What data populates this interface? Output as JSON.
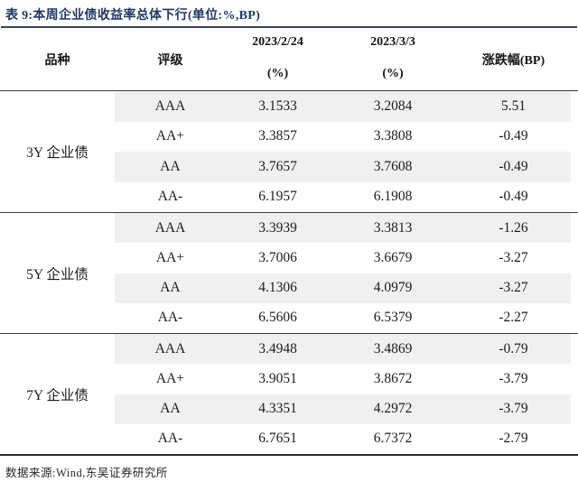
{
  "title": "表 9:本周企业债收益率总体下行(单位:%,BP)",
  "header": {
    "variety": "品种",
    "rating": "评级",
    "date1": "2023/2/24",
    "date1_unit": "(%)",
    "date2": "2023/3/3",
    "date2_unit": "(%)",
    "change": "涨跌幅(BP)"
  },
  "groups": [
    {
      "variety": "3Y 企业债",
      "rows": [
        {
          "rating": "AAA",
          "prev": "3.1533",
          "curr": "3.2084",
          "change": "5.51"
        },
        {
          "rating": "AA+",
          "prev": "3.3857",
          "curr": "3.3808",
          "change": "-0.49"
        },
        {
          "rating": "AA",
          "prev": "3.7657",
          "curr": "3.7608",
          "change": "-0.49"
        },
        {
          "rating": "AA-",
          "prev": "6.1957",
          "curr": "6.1908",
          "change": "-0.49"
        }
      ]
    },
    {
      "variety": "5Y 企业债",
      "rows": [
        {
          "rating": "AAA",
          "prev": "3.3939",
          "curr": "3.3813",
          "change": "-1.26"
        },
        {
          "rating": "AA+",
          "prev": "3.7006",
          "curr": "3.6679",
          "change": "-3.27"
        },
        {
          "rating": "AA",
          "prev": "4.1306",
          "curr": "4.0979",
          "change": "-3.27"
        },
        {
          "rating": "AA-",
          "prev": "6.5606",
          "curr": "6.5379",
          "change": "-2.27"
        }
      ]
    },
    {
      "variety": "7Y 企业债",
      "rows": [
        {
          "rating": "AAA",
          "prev": "3.4948",
          "curr": "3.4869",
          "change": "-0.79"
        },
        {
          "rating": "AA+",
          "prev": "3.9051",
          "curr": "3.8672",
          "change": "-3.79"
        },
        {
          "rating": "AA",
          "prev": "4.3351",
          "curr": "4.2972",
          "change": "-3.79"
        },
        {
          "rating": "AA-",
          "prev": "6.7651",
          "curr": "6.7372",
          "change": "-2.79"
        }
      ]
    }
  ],
  "footer": "数据来源:Wind,东吴证券研究所",
  "colors": {
    "title_navy": "#1f3864",
    "rule_dark": "#3c3c3c",
    "stripe_gray": "#f0f0f0",
    "body_text": "#1c1c1c"
  }
}
